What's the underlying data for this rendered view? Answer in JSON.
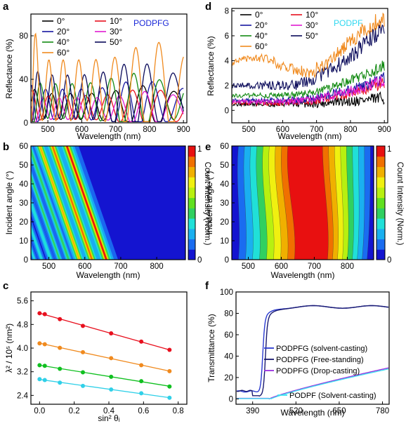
{
  "figure": {
    "panel_labels": [
      "a",
      "d",
      "b",
      "e",
      "c",
      "f"
    ]
  },
  "colors": {
    "angle_0": "#000000",
    "angle_10": "#e8101e",
    "angle_20": "#1616a0",
    "angle_30": "#e01ad0",
    "angle_40": "#128a12",
    "angle_50": "#0a0a5a",
    "angle_60": "#f08a1e",
    "fit_red": "#e8101e",
    "fit_orange": "#f08a1e",
    "fit_green": "#10c020",
    "fit_cyan": "#30d0e8",
    "podpfg_label": "#1a28d8",
    "podpf_label": "#30d8f0",
    "trans_solvent": "#2a3ad0",
    "trans_free": "#1a1a70",
    "trans_drop": "#9a30e0",
    "trans_podpf": "#40e0f0"
  },
  "chart_data": [
    {
      "panel": "a",
      "type": "line",
      "annotation": "PODPFG",
      "xlabel": "Wavelength (nm)",
      "ylabel": "Reflectance (%)",
      "xlim": [
        450,
        910
      ],
      "ylim": [
        0,
        100
      ],
      "xticks": [
        "500",
        "600",
        "700",
        "800",
        "900"
      ],
      "yticks": [
        "0",
        "40",
        "80"
      ],
      "legend": [
        "0°",
        "10°",
        "20°",
        "30°",
        "40°",
        "50°",
        "60°"
      ],
      "series": [
        {
          "name": "0°",
          "period": 46,
          "amp": 12,
          "base": 15,
          "peak": 780
        },
        {
          "name": "10°",
          "period": 44,
          "amp": 11,
          "base": 14,
          "peak": 790
        },
        {
          "name": "20°",
          "period": 43,
          "amp": 14,
          "base": 17,
          "peak": 770
        },
        {
          "name": "30°",
          "period": 42,
          "amp": 10,
          "base": 13,
          "peak": 800
        },
        {
          "name": "40°",
          "period": 40,
          "amp": 16,
          "base": 20,
          "peak": 750
        },
        {
          "name": "50°",
          "period": 38,
          "amp": 20,
          "base": 24,
          "peak": 760
        },
        {
          "name": "60°",
          "period": 36,
          "amp": 28,
          "base": 30,
          "peak": 810
        }
      ]
    },
    {
      "panel": "d",
      "type": "line",
      "annotation": "PODPF",
      "xlabel": "Wavelength (nm)",
      "ylabel": "Reflectance (%)",
      "xlim": [
        450,
        910
      ],
      "ylim": [
        -1,
        8.2
      ],
      "xticks": [
        "500",
        "600",
        "700",
        "800",
        "900"
      ],
      "yticks": [
        "0",
        "2",
        "4",
        "6",
        "8"
      ],
      "legend": [
        "0°",
        "10°",
        "20°",
        "30°",
        "40°",
        "50°",
        "60°"
      ],
      "series": [
        {
          "name": "0°",
          "start": 0.5,
          "end": 1.0
        },
        {
          "name": "10°",
          "start": 0.6,
          "end": 2.2
        },
        {
          "name": "20°",
          "start": 0.8,
          "end": 2.6
        },
        {
          "name": "30°",
          "start": 0.7,
          "end": 2.4
        },
        {
          "name": "40°",
          "start": 1.2,
          "end": 3.6
        },
        {
          "name": "50°",
          "start": 2.0,
          "end": 6.8
        },
        {
          "name": "60°",
          "start": 3.8,
          "end": 7.2
        }
      ]
    },
    {
      "panel": "b",
      "type": "heatmap",
      "xlabel": "Wavelength (nm)",
      "ylabel": "Incident angle (°)",
      "colorbar_label": "Count Intensity (Norm.)",
      "xlim": [
        450,
        880
      ],
      "ylim": [
        0,
        60
      ],
      "xticks": [
        "500",
        "600",
        "700",
        "800"
      ],
      "yticks": [
        "0",
        "10",
        "20",
        "30",
        "40",
        "50",
        "60"
      ],
      "colorbar_ticks": [
        "0",
        "1"
      ]
    },
    {
      "panel": "e",
      "type": "heatmap",
      "xlabel": "Wavelength (nm)",
      "ylabel": "Incident angle (°)",
      "colorbar_label": "Count Intensity (Norm.)",
      "xlim": [
        450,
        880
      ],
      "ylim": [
        0,
        60
      ],
      "xticks": [
        "500",
        "600",
        "700",
        "800"
      ],
      "yticks": [
        "0",
        "10",
        "20",
        "30",
        "40",
        "50",
        "60"
      ],
      "colorbar_ticks": [
        "0",
        "1"
      ]
    },
    {
      "panel": "c",
      "type": "scatter",
      "xlabel": "sin² θᵢ",
      "ylabel": "λ² / 10⁵ (nm²)",
      "xlim": [
        -0.05,
        0.85
      ],
      "ylim": [
        2.1,
        5.9
      ],
      "xticks": [
        "0.0",
        "0.2",
        "0.4",
        "0.6",
        "0.8"
      ],
      "yticks": [
        "2.4",
        "3.2",
        "4.0",
        "4.8",
        "5.6"
      ],
      "x": [
        0.0,
        0.03,
        0.117,
        0.25,
        0.413,
        0.587,
        0.75
      ],
      "series": [
        {
          "values": [
            5.18,
            5.15,
            4.98,
            4.75,
            4.5,
            4.22,
            3.94
          ]
        },
        {
          "values": [
            4.16,
            4.13,
            4.01,
            3.86,
            3.66,
            3.42,
            3.22
          ]
        },
        {
          "values": [
            3.42,
            3.4,
            3.3,
            3.18,
            3.03,
            2.88,
            2.7
          ]
        },
        {
          "values": [
            2.95,
            2.92,
            2.83,
            2.72,
            2.6,
            2.47,
            2.32
          ]
        }
      ]
    },
    {
      "panel": "f",
      "type": "line",
      "xlabel": "Wavelength (nm)",
      "ylabel": "Transmittance (%)",
      "xlim": [
        340,
        800
      ],
      "ylim": [
        -5,
        100
      ],
      "xticks": [
        "390",
        "520",
        "650",
        "780"
      ],
      "yticks": [
        "0",
        "20",
        "40",
        "60",
        "80",
        "100"
      ],
      "series": [
        {
          "name": "PODPFG (solvent-casting)",
          "edge": 420,
          "plateau": 86
        },
        {
          "name": "PODPFG (Free-standing)",
          "edge": 428,
          "plateau": 86
        },
        {
          "name": "PODPFG (Drop-casting)",
          "start": 440,
          "end_val": 29
        },
        {
          "name": "PODPF (Solvent-casting)",
          "start": 445,
          "end_val": 28
        }
      ]
    }
  ]
}
